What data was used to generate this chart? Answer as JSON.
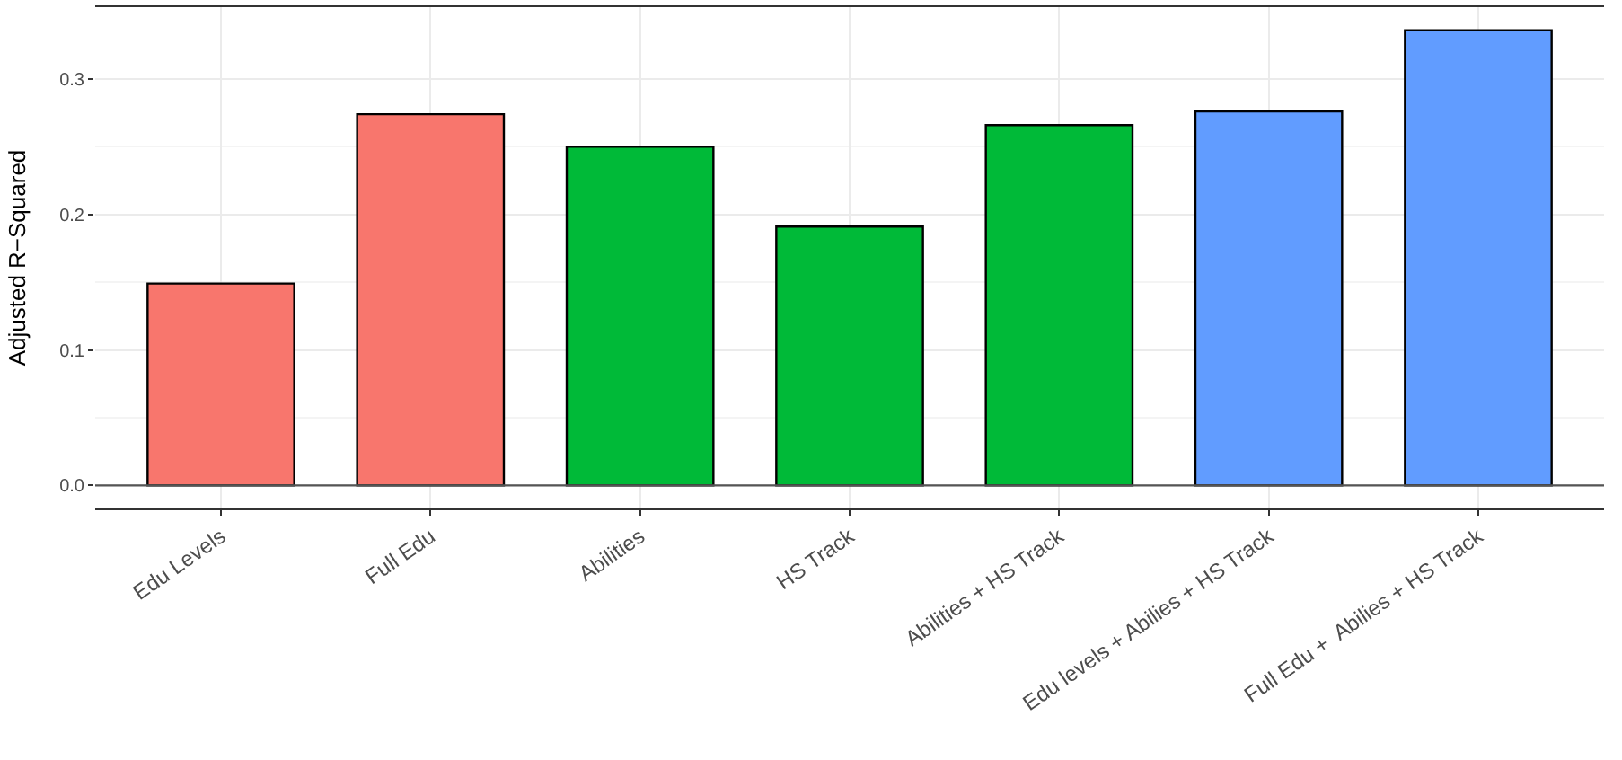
{
  "chart_data": {
    "type": "bar",
    "ylabel": "Adjusted R−Squared",
    "categories": [
      "Edu Levels",
      "Full Edu",
      "Abilities",
      "HS Track",
      "Abilities + HS Track",
      "Edu levels + Abilies + HS Track",
      "Full Edu +  Abilies + HS Track"
    ],
    "values": [
      0.149,
      0.274,
      0.25,
      0.191,
      0.266,
      0.276,
      0.336
    ],
    "colors": [
      "#f8766d",
      "#f8766d",
      "#00ba38",
      "#00ba38",
      "#00ba38",
      "#619cff",
      "#619cff"
    ],
    "ylim": [
      -0.017,
      0.353
    ],
    "yticks": [
      {
        "value": 0,
        "label": "0.0"
      },
      0.1,
      0.2,
      0.3
    ],
    "ref_lines": [
      {
        "axis": "y",
        "value": 0,
        "color": "#555555"
      }
    ],
    "grid": true
  }
}
